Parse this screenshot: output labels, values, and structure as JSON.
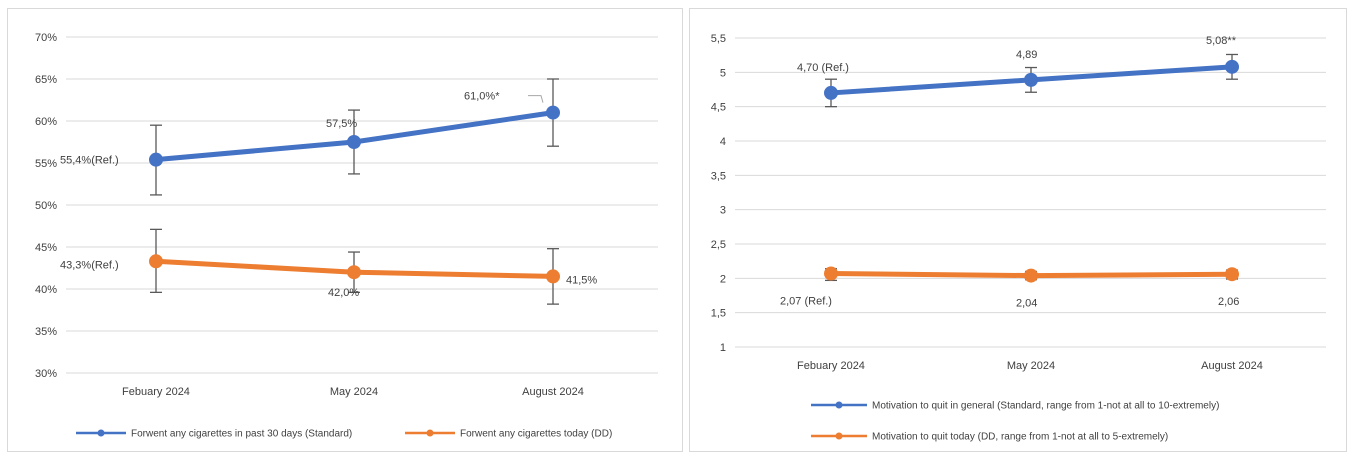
{
  "chart_data": [
    {
      "type": "line",
      "title": "",
      "xlabel": "",
      "ylabel": "",
      "categories": [
        "Febuary 2024",
        "May 2024",
        "August 2024"
      ],
      "ylim": [
        30,
        70
      ],
      "yticks": [
        "30%",
        "35%",
        "40%",
        "45%",
        "50%",
        "55%",
        "60%",
        "65%",
        "70%"
      ],
      "grid": true,
      "legend_position": "bottom",
      "series": [
        {
          "name": "Forwent any cigarettes in past 30 days (Standard)",
          "color": "#4472C4",
          "values": [
            55.4,
            57.5,
            61.0
          ],
          "error_low": [
            51.2,
            53.7,
            57.0
          ],
          "error_high": [
            59.5,
            61.3,
            65.0
          ],
          "labels": [
            "55,4%(Ref.)",
            "57,5%",
            "61,0%*"
          ]
        },
        {
          "name": "Forwent any cigarettes today (DD)",
          "color": "#ED7D31",
          "values": [
            43.3,
            42.0,
            41.5
          ],
          "error_low": [
            39.6,
            39.6,
            38.2
          ],
          "error_high": [
            47.1,
            44.4,
            44.8
          ],
          "labels": [
            "43,3%(Ref.)",
            "42,0%",
            "41,5%"
          ]
        }
      ]
    },
    {
      "type": "line",
      "title": "",
      "xlabel": "",
      "ylabel": "",
      "categories": [
        "Febuary 2024",
        "May 2024",
        "August 2024"
      ],
      "ylim": [
        1,
        5.5
      ],
      "yticks": [
        "1",
        "1,5",
        "2",
        "2,5",
        "3",
        "3,5",
        "4",
        "4,5",
        "5",
        "5,5"
      ],
      "grid": true,
      "legend_position": "bottom",
      "series": [
        {
          "name": "Motivation to quit in general (Standard, range from 1-not at all to 10-extremely)",
          "color": "#4472C4",
          "values": [
            4.7,
            4.89,
            5.08
          ],
          "error_low": [
            4.5,
            4.71,
            4.9
          ],
          "error_high": [
            4.9,
            5.07,
            5.26
          ],
          "labels": [
            "4,70 (Ref.)",
            "4,89",
            "5,08**"
          ]
        },
        {
          "name": "Motivation to quit today (DD, range from 1-not at all to 5-extremely)",
          "color": "#ED7D31",
          "values": [
            2.07,
            2.04,
            2.06
          ],
          "error_low": [
            1.97,
            1.98,
            1.99
          ],
          "error_high": [
            2.14,
            2.1,
            2.12
          ],
          "labels": [
            "2,07 (Ref.)",
            "2,04",
            "2,06"
          ]
        }
      ]
    }
  ]
}
